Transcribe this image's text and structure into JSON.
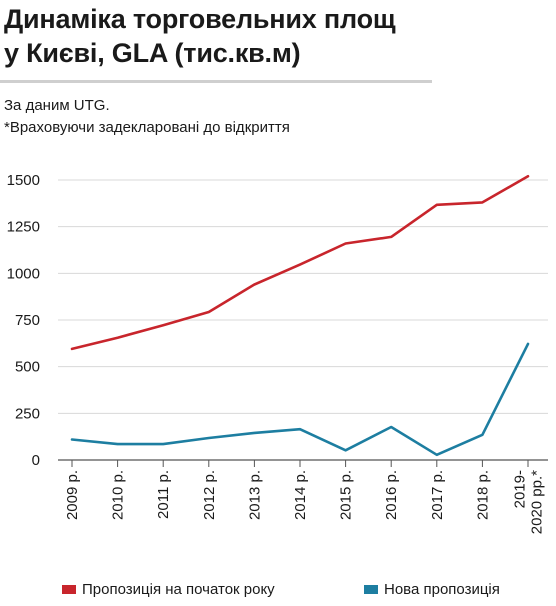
{
  "header": {
    "title_line1": "Динаміка торговельних площ",
    "title_line2": "у  Києві, GLA (тис.кв.м)",
    "source": "За даним UTG.",
    "note": "*Враховуючи задекларовані до відкриття"
  },
  "chart_data": {
    "type": "line",
    "categories": [
      "2009 р.",
      "2010 р.",
      "2011 р.",
      "2012 р.",
      "2013 р.",
      "2014 р.",
      "2015 р.",
      "2016 р.",
      "2017 р.",
      "2018 р.",
      "2019-2020 рр.*"
    ],
    "category_labels": [
      [
        "2009 р."
      ],
      [
        "2010 р."
      ],
      [
        "2011 р."
      ],
      [
        "2012 р."
      ],
      [
        "2013 р."
      ],
      [
        "2014 р."
      ],
      [
        "2015 р."
      ],
      [
        "2016 р."
      ],
      [
        "2017 р."
      ],
      [
        "2018 р."
      ],
      [
        "2019-",
        "2020 рр.*"
      ]
    ],
    "series": [
      {
        "name": "Пропозиція на початок року",
        "color": "#c8252c",
        "values": [
          595,
          655,
          722,
          793,
          940,
          1047,
          1160,
          1195,
          1367,
          1380,
          1520
        ]
      },
      {
        "name": "Нова пропозиція",
        "color": "#1d7ea1",
        "values": [
          110,
          85,
          85,
          118,
          145,
          165,
          52,
          177,
          28,
          135,
          622
        ]
      }
    ],
    "yticks": [
      0,
      250,
      500,
      750,
      1000,
      1250,
      1500
    ],
    "ylim": [
      0,
      1550
    ],
    "grid": true,
    "legend_position": "bottom"
  }
}
